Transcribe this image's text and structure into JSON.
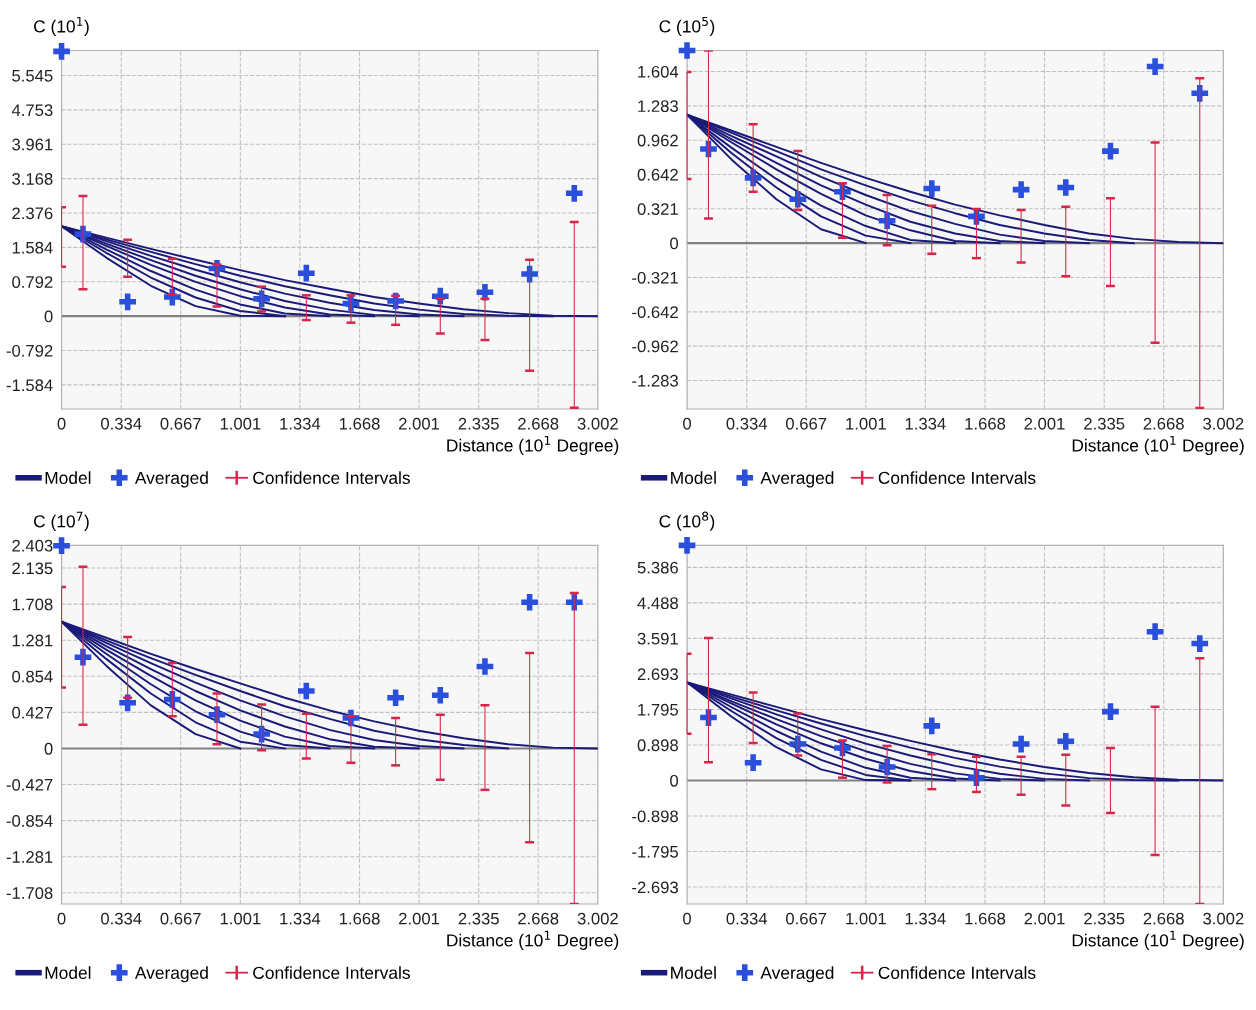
{
  "chart_data": [
    {
      "type": "line",
      "ylabel": "C (10$^{1}$)",
      "xlabel": "Distance (10$^{1}$ Degree)",
      "xlim": [
        0,
        3.002
      ],
      "xticks": [
        0,
        0.334,
        0.667,
        1.001,
        1.334,
        1.668,
        2.001,
        2.335,
        2.668,
        3.002
      ],
      "ylim": [
        -2.14,
        6.12
      ],
      "yticks": [
        -1.584,
        -0.792,
        0,
        0.792,
        1.584,
        2.376,
        3.168,
        3.961,
        4.753,
        5.545
      ],
      "grid": true,
      "legend": "bottom",
      "ref_lines": [
        {
          "axis": "y",
          "value": 0,
          "color": "#808080"
        }
      ],
      "x": [
        0,
        0.12,
        0.37,
        0.62,
        0.87,
        1.12,
        1.37,
        1.62,
        1.87,
        2.12,
        2.37,
        2.62,
        2.87
      ],
      "series": [
        {
          "name": "Model",
          "color": "#1a1a7a",
          "x": [
            0,
            0.25,
            0.5,
            0.75,
            1.0,
            1.25
          ],
          "values": [
            2.07,
            1.35,
            0.7,
            0.23,
            0.01,
            0
          ]
        },
        {
          "color": "#1a1a7a",
          "x": [
            0,
            0.25,
            0.5,
            0.75,
            1.0,
            1.25
          ],
          "values": [
            2.07,
            1.46,
            0.89,
            0.43,
            0.12,
            0
          ]
        },
        {
          "color": "#1a1a7a",
          "x": [
            0,
            0.25,
            0.5,
            0.75,
            1.0,
            1.25,
            1.5
          ],
          "values": [
            2.07,
            1.54,
            1.04,
            0.61,
            0.27,
            0.06,
            0
          ]
        },
        {
          "color": "#1a1a7a",
          "x": [
            0,
            0.25,
            0.5,
            0.75,
            1.0,
            1.25,
            1.5,
            1.75
          ],
          "values": [
            2.07,
            1.62,
            1.18,
            0.79,
            0.46,
            0.2,
            0.04,
            0
          ]
        },
        {
          "color": "#1a1a7a",
          "x": [
            0,
            0.25,
            0.5,
            0.75,
            1.0,
            1.25,
            1.5,
            1.75,
            2.0
          ],
          "values": [
            2.07,
            1.67,
            1.29,
            0.93,
            0.62,
            0.35,
            0.15,
            0.03,
            0
          ]
        },
        {
          "color": "#1a1a7a",
          "x": [
            0,
            0.25,
            0.5,
            0.75,
            1.0,
            1.25,
            1.5,
            1.75,
            2.0,
            2.25
          ],
          "values": [
            2.07,
            1.73,
            1.39,
            1.07,
            0.78,
            0.52,
            0.31,
            0.14,
            0.04,
            0
          ]
        },
        {
          "color": "#1a1a7a",
          "x": [
            0,
            0.25,
            0.5,
            0.75,
            1.0,
            1.25,
            1.5,
            1.75,
            2.0,
            2.25,
            2.5,
            2.75
          ],
          "values": [
            2.07,
            1.77,
            1.48,
            1.2,
            0.93,
            0.69,
            0.48,
            0.29,
            0.15,
            0.05,
            0.01,
            0
          ]
        },
        {
          "color": "#1a1a7a",
          "x": [
            0,
            0.25,
            0.5,
            0.75,
            1.0,
            1.25,
            1.5,
            1.75,
            2.0,
            2.25,
            2.5,
            2.75,
            3.0
          ],
          "values": [
            2.07,
            1.81,
            1.55,
            1.3,
            1.06,
            0.83,
            0.63,
            0.44,
            0.29,
            0.16,
            0.07,
            0.01,
            0
          ]
        },
        {
          "name": "Averaged",
          "type": "scatter",
          "color": "#2a4fdc",
          "marker": "cross",
          "values": [
            6.1,
            1.89,
            0.33,
            0.44,
            1.1,
            0.4,
            0.99,
            0.29,
            0.35,
            0.46,
            0.55,
            0.97,
            2.83
          ]
        },
        {
          "name": "Confidence Intervals",
          "type": "bar",
          "color": "#d6264a",
          "base": [
            1.14,
            0.62,
            0.91,
            0.5,
            0.22,
            0.11,
            -0.09,
            -0.15,
            -0.2,
            -0.4,
            -0.55,
            -1.26,
            -2.11
          ],
          "values": [
            1.37,
            2.15,
            0.85,
            0.82,
            0.97,
            0.57,
            0.57,
            0.63,
            0.67,
            0.8,
            0.95,
            2.56,
            4.28
          ]
        }
      ]
    },
    {
      "type": "line",
      "ylabel": "C (10$^{5}$)",
      "xlabel": "Distance (10$^{1}$ Degree)",
      "xlim": [
        0,
        3.002
      ],
      "xticks": [
        0,
        0.334,
        0.667,
        1.001,
        1.334,
        1.668,
        2.001,
        2.335,
        2.668,
        3.002
      ],
      "ylim": [
        -1.55,
        1.8
      ],
      "yticks": [
        -1.283,
        -0.962,
        -0.642,
        -0.321,
        0,
        0.321,
        0.642,
        0.962,
        1.283,
        1.604
      ],
      "grid": true,
      "legend": "bottom",
      "ref_lines": [
        {
          "axis": "y",
          "value": 0,
          "color": "#808080"
        }
      ],
      "x": [
        0,
        0.12,
        0.37,
        0.62,
        0.87,
        1.12,
        1.37,
        1.62,
        1.87,
        2.12,
        2.37,
        2.62,
        2.87
      ],
      "series": [
        {
          "name": "Model",
          "color": "#1a1a7a",
          "x": [
            0,
            0.25,
            0.5,
            0.75,
            1.0
          ],
          "values": [
            1.2,
            0.78,
            0.41,
            0.13,
            0
          ]
        },
        {
          "color": "#1a1a7a",
          "x": [
            0,
            0.25,
            0.5,
            0.75,
            1.0,
            1.25
          ],
          "values": [
            1.2,
            0.84,
            0.52,
            0.25,
            0.07,
            0
          ]
        },
        {
          "color": "#1a1a7a",
          "x": [
            0,
            0.25,
            0.5,
            0.75,
            1.0,
            1.25,
            1.5
          ],
          "values": [
            1.2,
            0.89,
            0.6,
            0.35,
            0.16,
            0.03,
            0
          ]
        },
        {
          "color": "#1a1a7a",
          "x": [
            0,
            0.25,
            0.5,
            0.75,
            1.0,
            1.25,
            1.5,
            1.75
          ],
          "values": [
            1.2,
            0.94,
            0.69,
            0.46,
            0.26,
            0.12,
            0.02,
            0
          ]
        },
        {
          "color": "#1a1a7a",
          "x": [
            0,
            0.25,
            0.5,
            0.75,
            1.0,
            1.25,
            1.5,
            1.75,
            2.0
          ],
          "values": [
            1.2,
            0.97,
            0.75,
            0.54,
            0.36,
            0.2,
            0.09,
            0.02,
            0
          ]
        },
        {
          "color": "#1a1a7a",
          "x": [
            0,
            0.25,
            0.5,
            0.75,
            1.0,
            1.25,
            1.5,
            1.75,
            2.0,
            2.25
          ],
          "values": [
            1.2,
            1.0,
            0.81,
            0.62,
            0.45,
            0.3,
            0.18,
            0.08,
            0.02,
            0
          ]
        },
        {
          "color": "#1a1a7a",
          "x": [
            0,
            0.25,
            0.5,
            0.75,
            1.0,
            1.25,
            1.5,
            1.75,
            2.0,
            2.25,
            2.5
          ],
          "values": [
            1.2,
            1.03,
            0.86,
            0.69,
            0.54,
            0.4,
            0.28,
            0.17,
            0.09,
            0.03,
            0
          ]
        },
        {
          "color": "#1a1a7a",
          "x": [
            0,
            0.25,
            0.5,
            0.75,
            1.0,
            1.25,
            1.5,
            1.75,
            2.0,
            2.25,
            2.5,
            2.75,
            3.0
          ],
          "values": [
            1.2,
            1.05,
            0.9,
            0.75,
            0.61,
            0.48,
            0.36,
            0.26,
            0.17,
            0.09,
            0.04,
            0.01,
            0
          ]
        },
        {
          "name": "Averaged",
          "type": "scatter",
          "color": "#2a4fdc",
          "marker": "cross",
          "values": [
            1.8,
            0.88,
            0.61,
            0.41,
            0.48,
            0.21,
            0.51,
            0.25,
            0.5,
            0.52,
            0.86,
            1.65,
            1.4
          ]
        },
        {
          "name": "Confidence Intervals",
          "type": "bar",
          "color": "#d6264a",
          "base": [
            0.6,
            0.23,
            0.48,
            0.31,
            0.05,
            -0.02,
            -0.1,
            -0.14,
            -0.18,
            -0.31,
            -0.4,
            -0.93,
            -1.54
          ],
          "values": [
            1.0,
            1.57,
            0.63,
            0.55,
            0.51,
            0.47,
            0.45,
            0.46,
            0.49,
            0.65,
            0.82,
            1.87,
            3.08
          ]
        }
      ]
    },
    {
      "type": "line",
      "ylabel": "C (10$^{7}$)",
      "xlabel": "Distance (10$^{1}$ Degree)",
      "xlim": [
        0,
        3.002
      ],
      "xticks": [
        0,
        0.334,
        0.667,
        1.001,
        1.334,
        1.668,
        2.001,
        2.335,
        2.668,
        3.002
      ],
      "ylim": [
        -1.84,
        2.403
      ],
      "yticks": [
        -1.708,
        -1.281,
        -0.854,
        -0.427,
        0,
        0.427,
        0.854,
        1.281,
        1.708,
        2.135,
        2.403
      ],
      "grid": true,
      "legend": "bottom",
      "ref_lines": [
        {
          "axis": "y",
          "value": 0,
          "color": "#808080"
        }
      ],
      "x": [
        0,
        0.12,
        0.37,
        0.62,
        0.87,
        1.12,
        1.37,
        1.62,
        1.87,
        2.12,
        2.37,
        2.62,
        2.87
      ],
      "series": [
        {
          "name": "Model",
          "color": "#1a1a7a",
          "x": [
            0,
            0.25,
            0.5,
            0.75,
            1.0
          ],
          "values": [
            1.5,
            0.98,
            0.51,
            0.17,
            0
          ]
        },
        {
          "color": "#1a1a7a",
          "x": [
            0,
            0.25,
            0.5,
            0.75,
            1.0,
            1.25
          ],
          "values": [
            1.5,
            1.06,
            0.65,
            0.31,
            0.08,
            0
          ]
        },
        {
          "color": "#1a1a7a",
          "x": [
            0,
            0.25,
            0.5,
            0.75,
            1.0,
            1.25,
            1.5
          ],
          "values": [
            1.5,
            1.12,
            0.76,
            0.44,
            0.2,
            0.04,
            0
          ]
        },
        {
          "color": "#1a1a7a",
          "x": [
            0,
            0.25,
            0.5,
            0.75,
            1.0,
            1.25,
            1.5,
            1.75
          ],
          "values": [
            1.5,
            1.17,
            0.86,
            0.57,
            0.33,
            0.14,
            0.03,
            0
          ]
        },
        {
          "color": "#1a1a7a",
          "x": [
            0,
            0.25,
            0.5,
            0.75,
            1.0,
            1.25,
            1.5,
            1.75,
            2.0
          ],
          "values": [
            1.5,
            1.21,
            0.94,
            0.68,
            0.45,
            0.26,
            0.11,
            0.02,
            0
          ]
        },
        {
          "color": "#1a1a7a",
          "x": [
            0,
            0.25,
            0.5,
            0.75,
            1.0,
            1.25,
            1.5,
            1.75,
            2.0,
            2.25
          ],
          "values": [
            1.5,
            1.25,
            1.01,
            0.78,
            0.57,
            0.38,
            0.22,
            0.1,
            0.03,
            0
          ]
        },
        {
          "color": "#1a1a7a",
          "x": [
            0,
            0.25,
            0.5,
            0.75,
            1.0,
            1.25,
            1.5,
            1.75,
            2.0,
            2.25,
            2.5
          ],
          "values": [
            1.5,
            1.28,
            1.07,
            0.87,
            0.68,
            0.5,
            0.35,
            0.21,
            0.11,
            0.04,
            0
          ]
        },
        {
          "color": "#1a1a7a",
          "x": [
            0,
            0.25,
            0.5,
            0.75,
            1.0,
            1.25,
            1.5,
            1.75,
            2.0,
            2.25,
            2.5,
            2.75,
            3.0
          ],
          "values": [
            1.5,
            1.31,
            1.12,
            0.94,
            0.77,
            0.6,
            0.45,
            0.32,
            0.21,
            0.12,
            0.05,
            0.01,
            0
          ]
        },
        {
          "name": "Averaged",
          "type": "scatter",
          "color": "#2a4fdc",
          "marker": "cross",
          "values": [
            2.4,
            1.08,
            0.54,
            0.58,
            0.4,
            0.17,
            0.68,
            0.36,
            0.6,
            0.63,
            0.97,
            1.73,
            1.73
          ]
        },
        {
          "name": "Confidence Intervals",
          "type": "bar",
          "color": "#d6264a",
          "base": [
            0.72,
            0.28,
            0.6,
            0.38,
            0.05,
            -0.02,
            -0.12,
            -0.17,
            -0.2,
            -0.37,
            -0.49,
            -1.11,
            -1.84
          ],
          "values": [
            1.19,
            1.87,
            0.72,
            0.63,
            0.6,
            0.54,
            0.53,
            0.55,
            0.56,
            0.77,
            1.0,
            2.24,
            3.68
          ]
        }
      ]
    },
    {
      "type": "line",
      "ylabel": "C (10$^{8}$)",
      "xlabel": "Distance (10$^{1}$ Degree)",
      "xlim": [
        0,
        3.002
      ],
      "xticks": [
        0,
        0.334,
        0.667,
        1.001,
        1.334,
        1.668,
        2.001,
        2.335,
        2.668,
        3.002
      ],
      "ylim": [
        -3.12,
        5.94
      ],
      "yticks": [
        -2.693,
        -1.795,
        -0.898,
        0,
        0.898,
        1.795,
        2.693,
        3.591,
        4.488,
        5.386
      ],
      "grid": true,
      "legend": "bottom",
      "ref_lines": [
        {
          "axis": "y",
          "value": 0,
          "color": "#808080"
        }
      ],
      "x": [
        0,
        0.12,
        0.37,
        0.62,
        0.87,
        1.12,
        1.37,
        1.62,
        1.87,
        2.12,
        2.37,
        2.62,
        2.87
      ],
      "series": [
        {
          "name": "Model",
          "color": "#1a1a7a",
          "x": [
            0,
            0.25,
            0.5,
            0.75,
            1.0,
            1.25
          ],
          "values": [
            2.48,
            1.61,
            0.84,
            0.28,
            0.01,
            0
          ]
        },
        {
          "color": "#1a1a7a",
          "x": [
            0,
            0.25,
            0.5,
            0.75,
            1.0,
            1.25
          ],
          "values": [
            2.48,
            1.75,
            1.07,
            0.52,
            0.14,
            0
          ]
        },
        {
          "color": "#1a1a7a",
          "x": [
            0,
            0.25,
            0.5,
            0.75,
            1.0,
            1.25,
            1.5
          ],
          "values": [
            2.48,
            1.85,
            1.25,
            0.73,
            0.32,
            0.07,
            0
          ]
        },
        {
          "color": "#1a1a7a",
          "x": [
            0,
            0.25,
            0.5,
            0.75,
            1.0,
            1.25,
            1.5,
            1.75
          ],
          "values": [
            2.48,
            1.94,
            1.42,
            0.94,
            0.55,
            0.24,
            0.05,
            0
          ]
        },
        {
          "color": "#1a1a7a",
          "x": [
            0,
            0.25,
            0.5,
            0.75,
            1.0,
            1.25,
            1.5,
            1.75,
            2.0
          ],
          "values": [
            2.48,
            2.0,
            1.55,
            1.12,
            0.74,
            0.42,
            0.18,
            0.04,
            0
          ]
        },
        {
          "color": "#1a1a7a",
          "x": [
            0,
            0.25,
            0.5,
            0.75,
            1.0,
            1.25,
            1.5,
            1.75,
            2.0,
            2.25
          ],
          "values": [
            2.48,
            2.07,
            1.67,
            1.29,
            0.93,
            0.63,
            0.37,
            0.17,
            0.04,
            0
          ]
        },
        {
          "color": "#1a1a7a",
          "x": [
            0,
            0.25,
            0.5,
            0.75,
            1.0,
            1.25,
            1.5,
            1.75,
            2.0,
            2.25,
            2.5,
            2.75
          ],
          "values": [
            2.48,
            2.12,
            1.77,
            1.44,
            1.12,
            0.83,
            0.57,
            0.35,
            0.18,
            0.06,
            0.01,
            0
          ]
        },
        {
          "color": "#1a1a7a",
          "x": [
            0,
            0.25,
            0.5,
            0.75,
            1.0,
            1.25,
            1.5,
            1.75,
            2.0,
            2.25,
            2.5,
            2.75,
            3.0
          ],
          "values": [
            2.48,
            2.17,
            1.86,
            1.55,
            1.27,
            1.0,
            0.75,
            0.53,
            0.34,
            0.19,
            0.08,
            0.02,
            0
          ]
        },
        {
          "name": "Averaged",
          "type": "scatter",
          "color": "#2a4fdc",
          "marker": "cross",
          "values": [
            5.94,
            1.59,
            0.45,
            0.92,
            0.82,
            0.34,
            1.38,
            0.07,
            0.92,
            0.99,
            1.74,
            3.76,
            3.46
          ]
        },
        {
          "name": "Confidence Intervals",
          "type": "bar",
          "color": "#d6264a",
          "base": [
            1.18,
            0.46,
            0.95,
            0.63,
            0.07,
            -0.05,
            -0.22,
            -0.29,
            -0.36,
            -0.63,
            -0.82,
            -1.88,
            -3.12
          ],
          "values": [
            2.02,
            3.14,
            1.27,
            1.06,
            0.94,
            0.92,
            0.88,
            0.89,
            0.96,
            1.28,
            1.64,
            3.74,
            6.21
          ]
        }
      ]
    }
  ]
}
